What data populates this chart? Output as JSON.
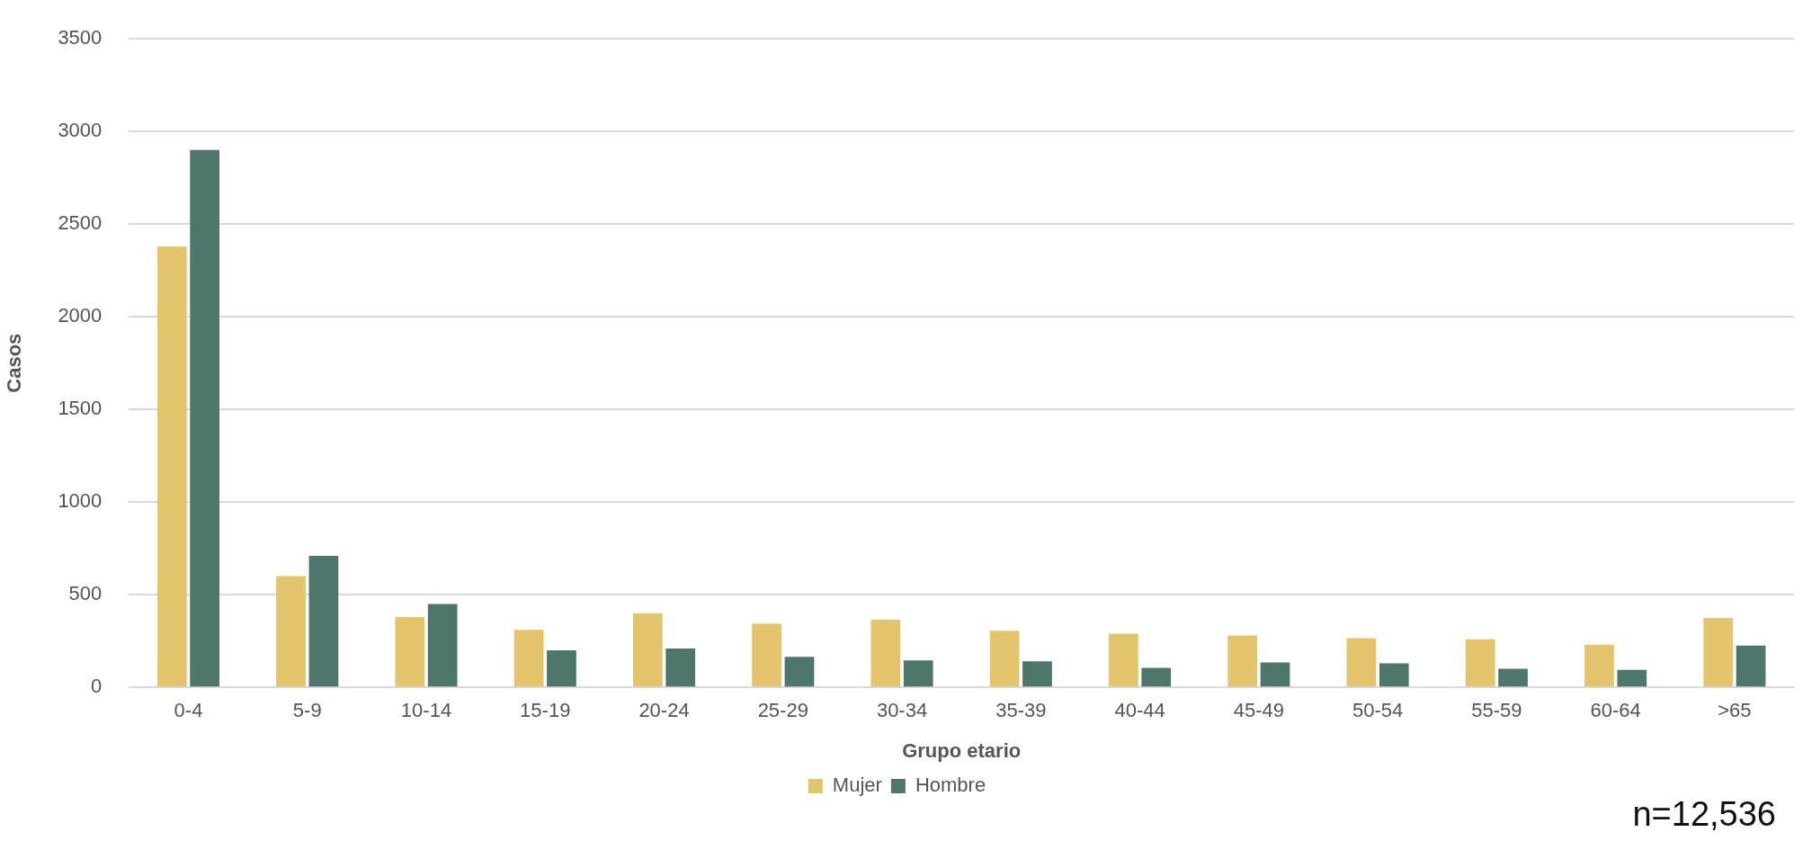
{
  "chart_data": {
    "type": "bar",
    "xlabel": "Grupo etario",
    "ylabel": "Casos",
    "categories": [
      "0-4",
      "5-9",
      "10-14",
      "15-19",
      "20-24",
      "25-29",
      "30-34",
      "35-39",
      "40-44",
      "45-49",
      "50-54",
      "55-59",
      "60-64",
      ">65"
    ],
    "series": [
      {
        "name": "Mujer",
        "color": "#e5c46e",
        "values": [
          2380,
          600,
          380,
          310,
          400,
          345,
          365,
          305,
          290,
          280,
          265,
          260,
          230,
          375
        ]
      },
      {
        "name": "Hombre",
        "color": "#4e766c",
        "values": [
          2900,
          710,
          450,
          200,
          210,
          165,
          145,
          140,
          105,
          135,
          130,
          100,
          95,
          225
        ]
      }
    ],
    "ylim": [
      0,
      3500
    ],
    "yticks": [
      0,
      500,
      1000,
      1500,
      2000,
      2500,
      3000,
      3500
    ],
    "grid": "y",
    "legend": "bottom",
    "annotations": [
      "n=12,536"
    ]
  }
}
